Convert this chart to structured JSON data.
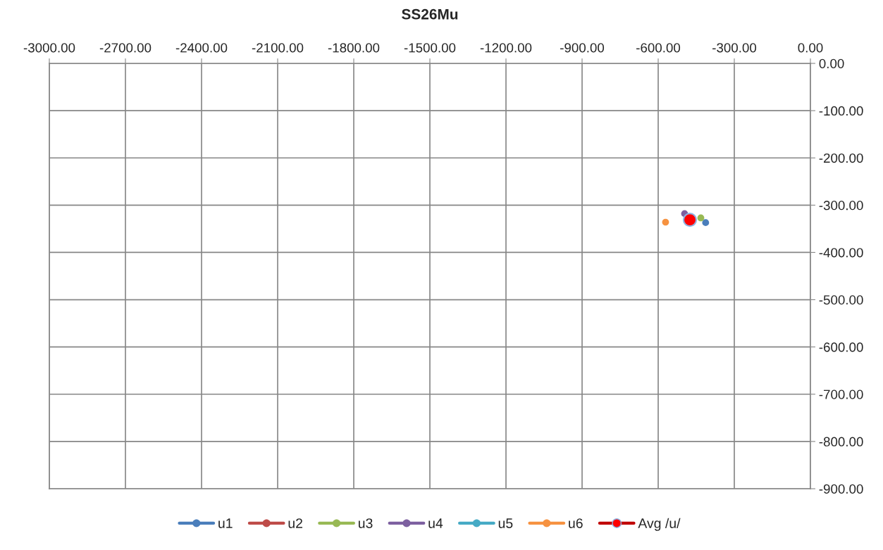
{
  "chart_data": {
    "type": "scatter",
    "title": "SS26Mu",
    "series": [
      {
        "name": "u1",
        "color": "#4a7ebb",
        "x": [
          -413
        ],
        "values": [
          -337
        ]
      },
      {
        "name": "u2",
        "color": "#be4b48",
        "x": [
          null
        ],
        "values": [
          null
        ]
      },
      {
        "name": "u3",
        "color": "#98b954",
        "x": [
          -432
        ],
        "values": [
          -327
        ]
      },
      {
        "name": "u4",
        "color": "#7d60a0",
        "x": [
          -496
        ],
        "values": [
          -318
        ]
      },
      {
        "name": "u5",
        "color": "#46aac5",
        "x": [
          null
        ],
        "values": [
          null
        ]
      },
      {
        "name": "u6",
        "color": "#f69240",
        "x": [
          -571
        ],
        "values": [
          -336
        ]
      },
      {
        "name": "Avg /u/",
        "color": "#ff0000",
        "x": [
          -475
        ],
        "values": [
          -331
        ]
      }
    ],
    "xlim": [
      -3000,
      0
    ],
    "ylim": [
      -900,
      0
    ],
    "xticks": [
      {
        "value": -3000,
        "label": "-3000.00"
      },
      {
        "value": -2700,
        "label": "-2700.00"
      },
      {
        "value": -2400,
        "label": "-2400.00"
      },
      {
        "value": -2100,
        "label": "-2100.00"
      },
      {
        "value": -1800,
        "label": "-1800.00"
      },
      {
        "value": -1500,
        "label": "-1500.00"
      },
      {
        "value": -1200,
        "label": "-1200.00"
      },
      {
        "value": -900,
        "label": "-900.00"
      },
      {
        "value": -600,
        "label": "-600.00"
      },
      {
        "value": -300,
        "label": "-300.00"
      },
      {
        "value": 0,
        "label": "0.00"
      }
    ],
    "yticks": [
      {
        "value": 0,
        "label": "0.00"
      },
      {
        "value": -100,
        "label": "-100.00"
      },
      {
        "value": -200,
        "label": "-200.00"
      },
      {
        "value": -300,
        "label": "-300.00"
      },
      {
        "value": -400,
        "label": "-400.00"
      },
      {
        "value": -500,
        "label": "-500.00"
      },
      {
        "value": -600,
        "label": "-600.00"
      },
      {
        "value": -700,
        "label": "-700.00"
      },
      {
        "value": -800,
        "label": "-800.00"
      },
      {
        "value": -900,
        "label": "-900.00"
      }
    ],
    "grid": true,
    "legend": "bottom",
    "marker": "circle"
  }
}
